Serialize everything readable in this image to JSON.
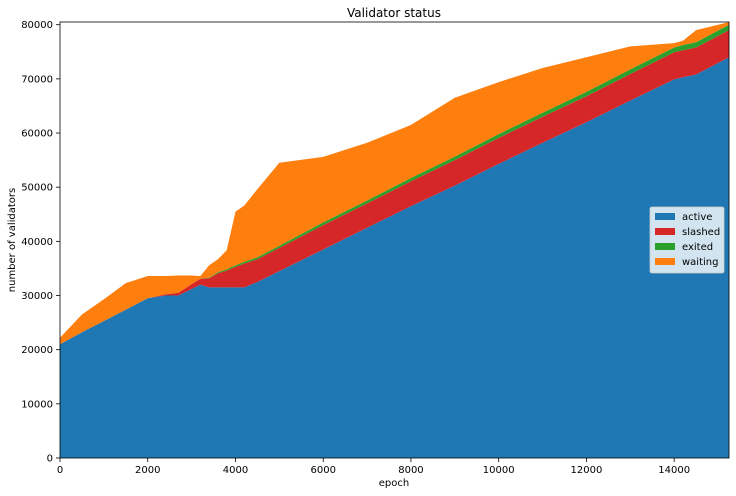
{
  "chart_data": {
    "type": "area",
    "stacked": true,
    "title": "Validator status",
    "xlabel": "epoch",
    "ylabel": "number of validators",
    "xlim": [
      0,
      15250
    ],
    "ylim": [
      0,
      80500
    ],
    "xticks": [
      0,
      2000,
      4000,
      6000,
      8000,
      10000,
      12000,
      14000
    ],
    "yticks": [
      0,
      10000,
      20000,
      30000,
      40000,
      50000,
      60000,
      70000,
      80000
    ],
    "legend_position": "center-right",
    "x": [
      0,
      500,
      1000,
      1500,
      2000,
      2400,
      2700,
      3000,
      3200,
      3400,
      3600,
      3800,
      4000,
      4200,
      4500,
      5000,
      6000,
      7000,
      8000,
      9000,
      10000,
      11000,
      12000,
      13000,
      14000,
      14200,
      14500,
      15250
    ],
    "series": [
      {
        "name": "active",
        "color": "#1f77b4",
        "values": [
          21000,
          23200,
          25300,
          27400,
          29500,
          30000,
          30000,
          31200,
          32000,
          31500,
          31500,
          31500,
          31500,
          31500,
          32500,
          34500,
          38500,
          42500,
          46500,
          50300,
          54300,
          58200,
          62000,
          66000,
          69900,
          70300,
          70800,
          74000
        ]
      },
      {
        "name": "slashed",
        "color": "#d62728",
        "values": [
          0,
          0,
          0,
          0,
          0,
          200,
          500,
          900,
          1100,
          1700,
          2600,
          3100,
          3800,
          4400,
          4200,
          4300,
          4500,
          4500,
          4600,
          4700,
          4800,
          4800,
          4800,
          4900,
          5000,
          5000,
          5000,
          5000
        ]
      },
      {
        "name": "exited",
        "color": "#2ca02c",
        "values": [
          0,
          0,
          0,
          0,
          0,
          0,
          0,
          0,
          0,
          100,
          200,
          250,
          300,
          300,
          350,
          400,
          500,
          550,
          600,
          650,
          700,
          750,
          800,
          850,
          900,
          950,
          950,
          1000
        ]
      },
      {
        "name": "waiting",
        "color": "#ff7f0e",
        "values": [
          1200,
          3300,
          4000,
          4900,
          4100,
          3400,
          3200,
          1600,
          500,
          2300,
          2400,
          3500,
          9900,
          10400,
          12600,
          15300,
          12100,
          10650,
          9800,
          10850,
          9600,
          8250,
          6400,
          4250,
          800,
          780,
          2250,
          480
        ]
      }
    ]
  }
}
